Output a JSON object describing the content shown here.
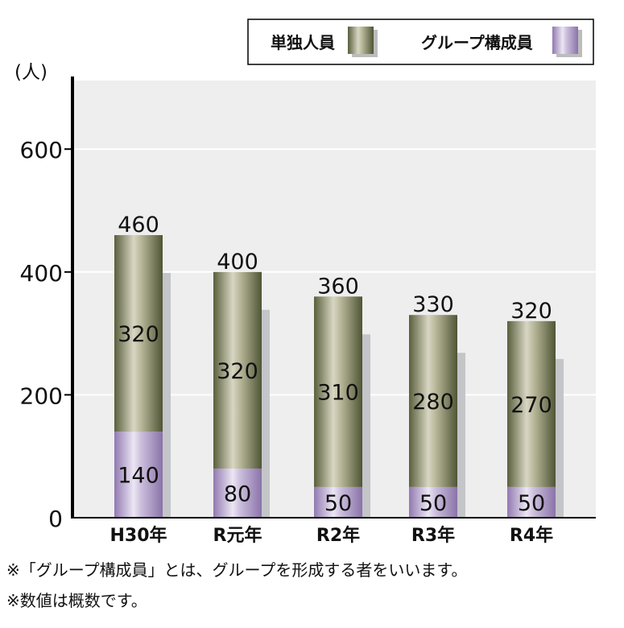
{
  "chart_data": {
    "type": "bar",
    "stacked": true,
    "unit_label": "(人)",
    "categories": [
      "H30年",
      "R元年",
      "R2年",
      "R3年",
      "R4年"
    ],
    "series": [
      {
        "name": "グループ構成員",
        "values": [
          140,
          80,
          50,
          50,
          50
        ],
        "color": "#a58fc0"
      },
      {
        "name": "単独人員",
        "values": [
          320,
          320,
          310,
          280,
          270
        ],
        "color": "#6f7550"
      }
    ],
    "totals": [
      460,
      400,
      360,
      330,
      320
    ],
    "ylim": [
      0,
      700
    ],
    "yticks": [
      0,
      200,
      400,
      600
    ],
    "grid": true,
    "legend_position": "top-right",
    "legend_order": [
      "単独人員",
      "グループ構成員"
    ]
  },
  "notes": [
    "※「グループ構成員」とは、グループを形成する者をいいます。",
    "※数値は概数です。"
  ]
}
